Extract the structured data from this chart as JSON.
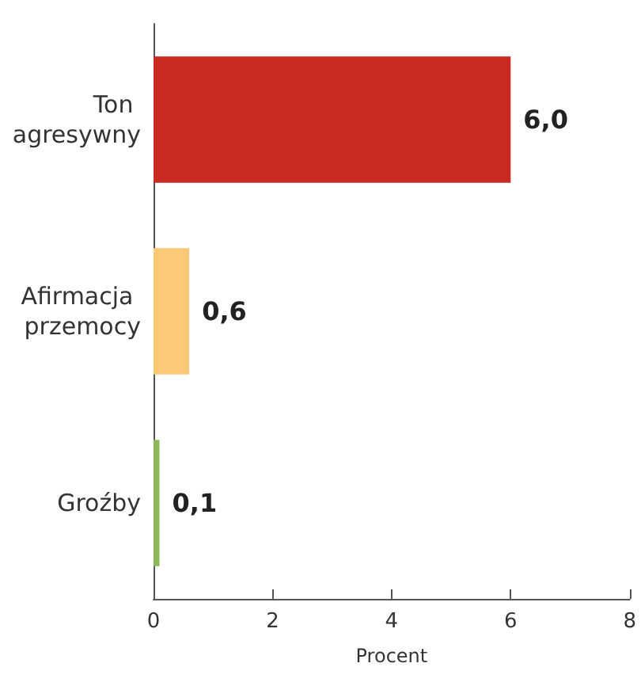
{
  "chart_data": {
    "type": "bar",
    "orientation": "horizontal",
    "xlabel": "Procent",
    "categories": [
      "Ton agresywny",
      "Afirmacja przemocy",
      "Groźby"
    ],
    "values": [
      6.0,
      0.6,
      0.1
    ],
    "colors": [
      "#c92a22",
      "#f9c975",
      "#8db85a"
    ],
    "value_labels": [
      "6,0",
      "0,6",
      "0,1"
    ],
    "xlim": [
      0,
      8
    ],
    "xticks": [
      0,
      2,
      4,
      6,
      8
    ],
    "grid": false
  }
}
